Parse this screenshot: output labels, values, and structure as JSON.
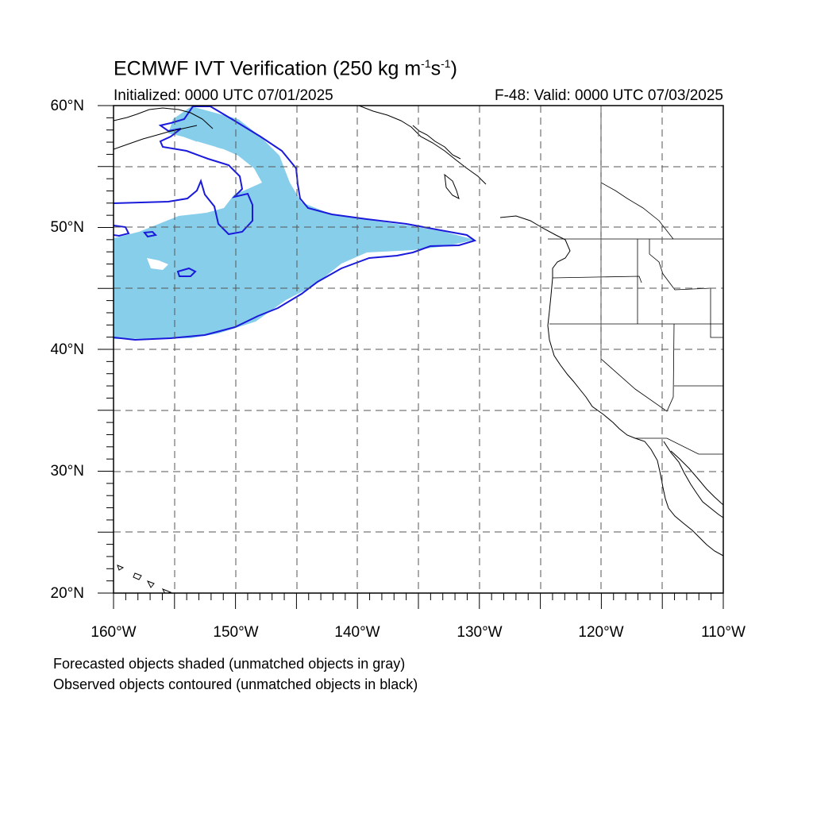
{
  "title": {
    "main": "ECMWF IVT Verification (250 kg m",
    "exp1": "-1",
    "mid": "s",
    "exp2": "-1",
    "end": ")"
  },
  "subtitle": {
    "initialized": "Initialized: 0000 UTC 07/01/2025",
    "valid": "F-48: Valid: 0000 UTC 07/03/2025"
  },
  "map": {
    "lon_range": [
      -160,
      -110
    ],
    "lat_range": [
      20,
      60
    ],
    "grid_dashed": true,
    "lat_labels": [
      "60°N",
      "50°N",
      "40°N",
      "30°N",
      "20°N"
    ],
    "lon_labels": [
      "160°W",
      "150°W",
      "140°W",
      "130°W",
      "120°W",
      "110°W"
    ],
    "colors": {
      "forecast_fill": "#87ceeb",
      "observed_contour": "#1a1adb",
      "coast": "#000000",
      "grid": "#555555"
    }
  },
  "legend": {
    "line1": "Forecasted objects shaded (unmatched objects in gray)",
    "line2": "Observed objects contoured (unmatched objects in black)"
  }
}
